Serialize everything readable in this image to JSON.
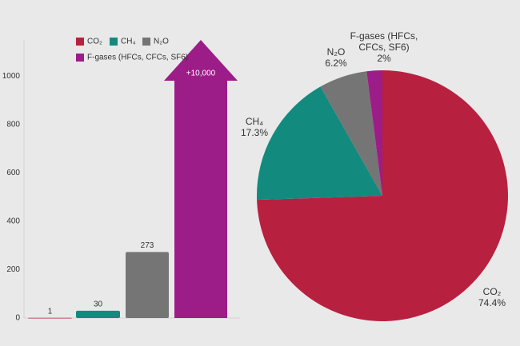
{
  "chart_data": [
    {
      "type": "bar",
      "categories": [
        "CO₂",
        "CH₄",
        "N₂O",
        "F-gases (HFCs, CFCs, SF6)"
      ],
      "values": [
        1,
        30,
        273,
        10000
      ],
      "value_labels": [
        "1",
        "30",
        "273",
        "+10,000"
      ],
      "colors": [
        "#b82040",
        "#128a7e",
        "#757575",
        "#9c1d88"
      ],
      "ylim": [
        0,
        1150
      ],
      "yticks": [
        0,
        200,
        400,
        600,
        800,
        1000
      ]
    },
    {
      "type": "pie",
      "categories": [
        "CO₂",
        "CH₄",
        "N₂O",
        "F-gases (HFCs, CFCs, SF6)"
      ],
      "values": [
        74.4,
        17.3,
        6.2,
        2
      ],
      "value_labels": [
        "74.4%",
        "17.3%",
        "6.2%",
        "2%"
      ],
      "colors": [
        "#b82040",
        "#128a7e",
        "#757575",
        "#9c1d88"
      ]
    }
  ]
}
